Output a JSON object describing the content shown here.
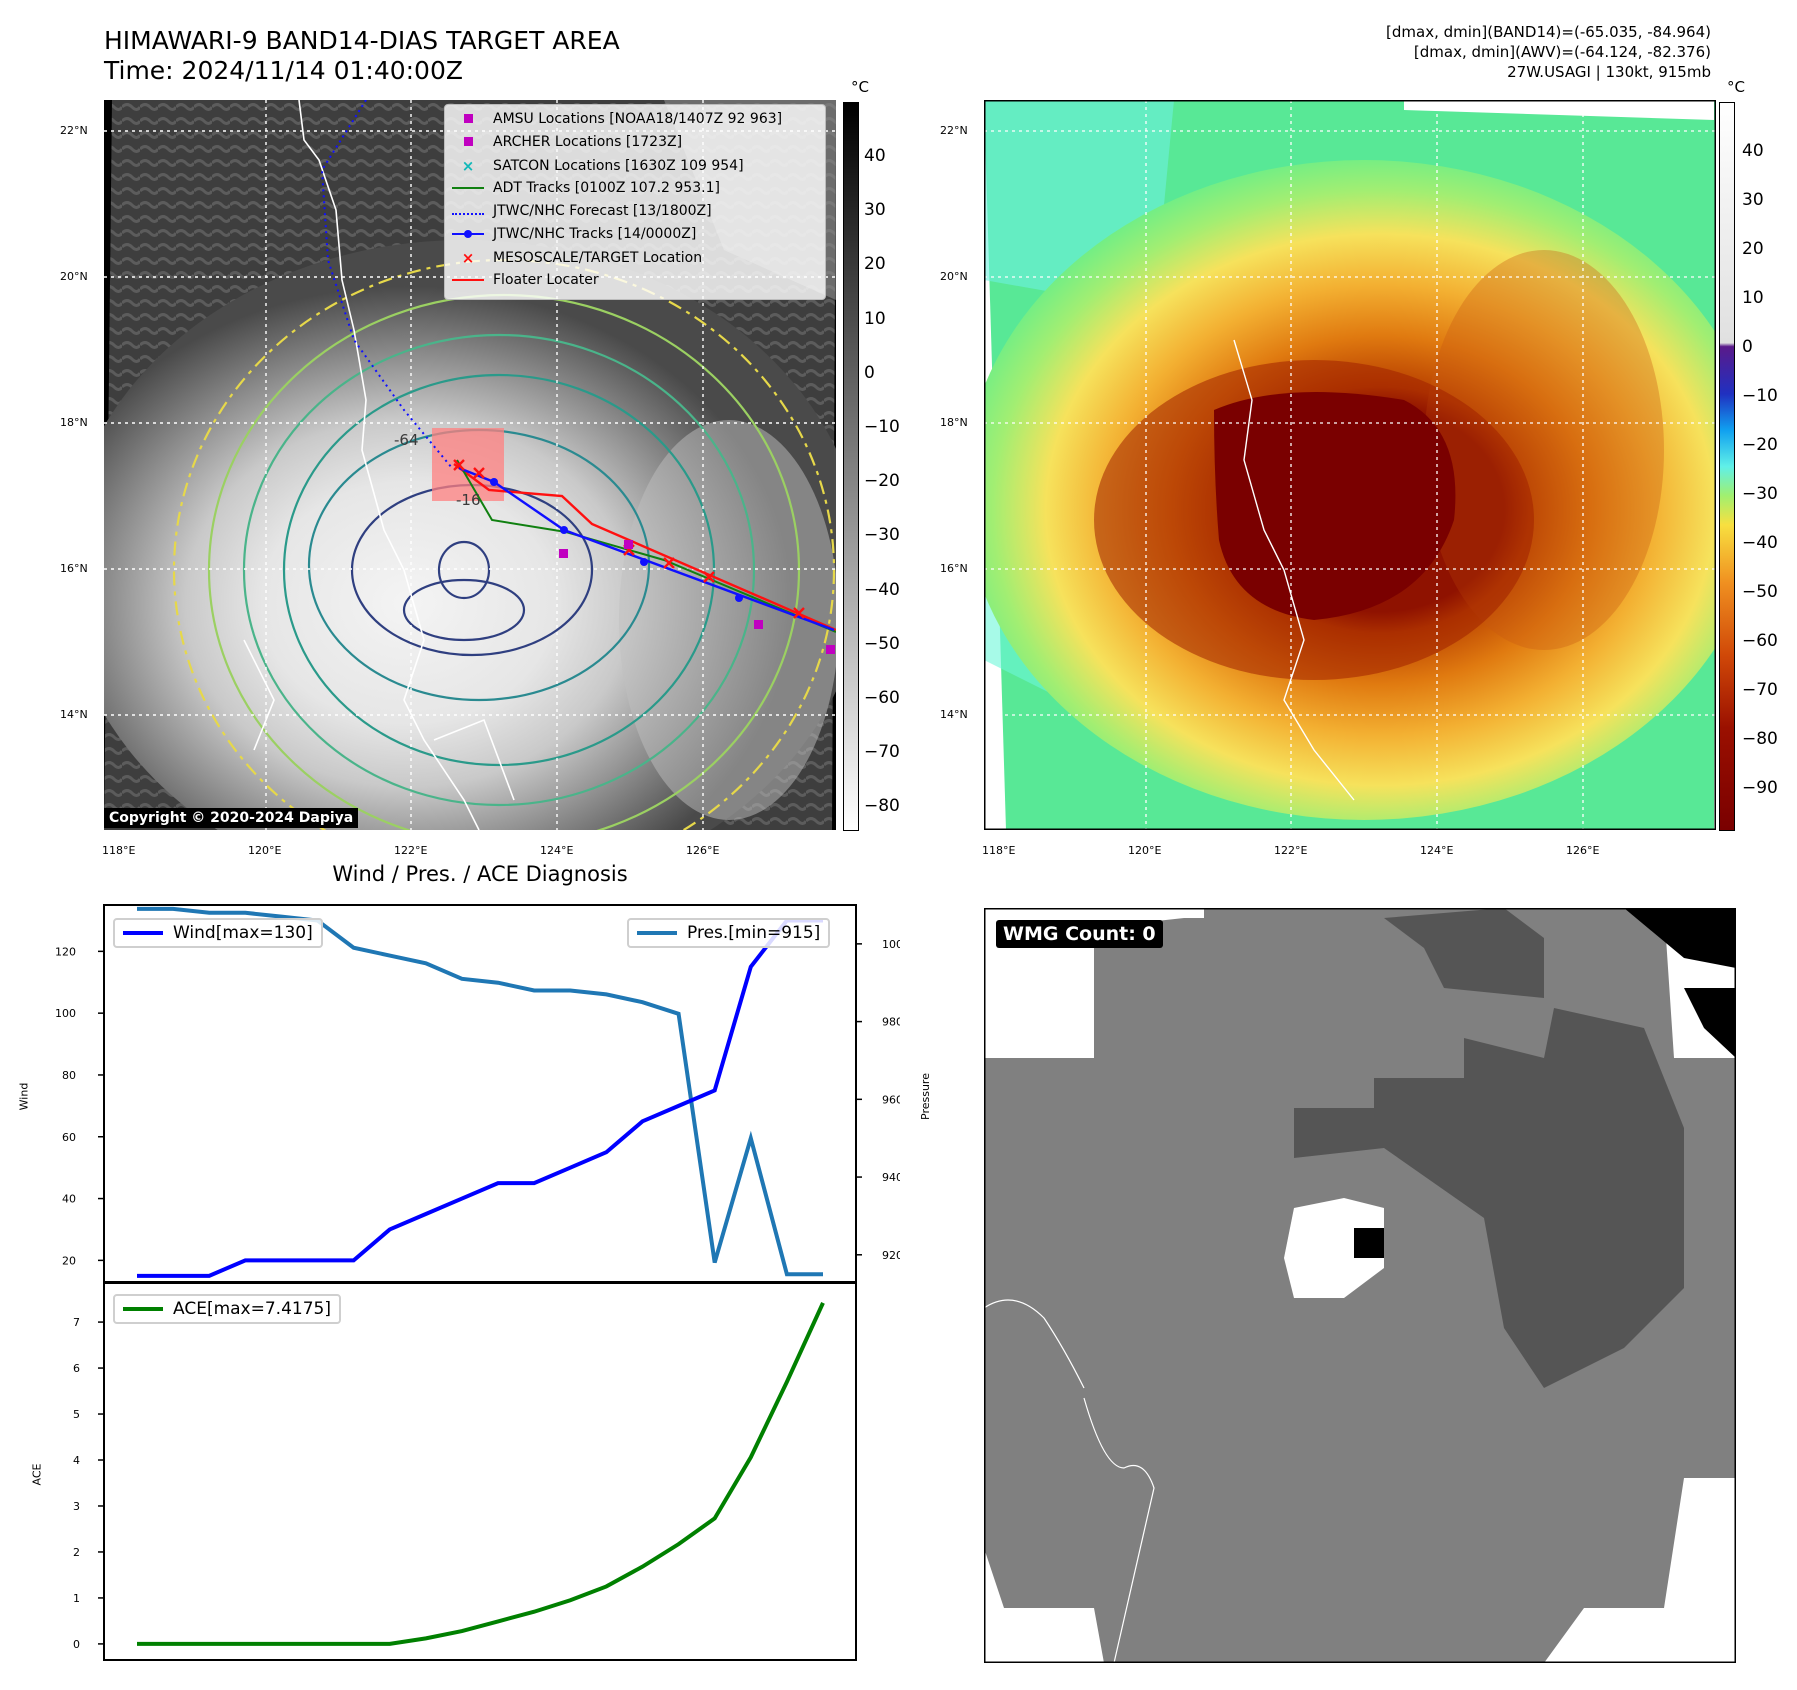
{
  "header": {
    "title_line1": "HIMAWARI-9 BAND14-DIAS TARGET AREA",
    "title_line2": "Time: 2024/11/14 01:40:00Z",
    "meta_line1": "[dmax, dmin](BAND14)=(-65.035, -84.964)",
    "meta_line2": "[dmax, dmin](AWV)=(-64.124, -82.376)",
    "meta_line3": "27W.USAGI | 130kt, 915mb"
  },
  "map": {
    "lat_labels": [
      "22°N",
      "20°N",
      "18°N",
      "16°N",
      "14°N"
    ],
    "lon_labels": [
      "118°E",
      "120°E",
      "122°E",
      "124°E",
      "126°E"
    ],
    "copyright": "Copyright © 2020-2024 Dapiya",
    "contour_labels": [
      "-64",
      "-16"
    ],
    "legend": [
      {
        "label": "AMSU Locations [NOAA18/1407Z 92 963]",
        "kind": "square",
        "color": "#c000c0"
      },
      {
        "label": "ARCHER Locations [1723Z]",
        "kind": "square",
        "color": "#c000c0"
      },
      {
        "label": "SATCON Locations [1630Z 109 954]",
        "kind": "x",
        "color": "#10b8b8"
      },
      {
        "label": "ADT Tracks [0100Z 107.2 953.1]",
        "kind": "line",
        "color": "#108010"
      },
      {
        "label": "JTWC/NHC Forecast [13/1800Z]",
        "kind": "dotted",
        "color": "#1010ff"
      },
      {
        "label": "JTWC/NHC Tracks [14/0000Z]",
        "kind": "dotline",
        "color": "#1010ff"
      },
      {
        "label": "MESOSCALE/TARGET Location",
        "kind": "x",
        "color": "#ff1010"
      },
      {
        "label": "Floater Locater",
        "kind": "line",
        "color": "#ff1010"
      }
    ]
  },
  "colorbar_gray": {
    "unit": "°C",
    "ticks": [
      "40",
      "30",
      "20",
      "10",
      "0",
      "−10",
      "−20",
      "−30",
      "−40",
      "−50",
      "−60",
      "−70",
      "−80"
    ]
  },
  "colorbar_color": {
    "unit": "°C",
    "ticks": [
      "40",
      "30",
      "20",
      "10",
      "0",
      "−10",
      "−20",
      "−30",
      "−40",
      "−50",
      "−60",
      "−70",
      "−80",
      "−90"
    ]
  },
  "wmg": {
    "label": "WMG Count: 0"
  },
  "colors": {
    "wind": "#0000ff",
    "pressure": "#1f77b4",
    "ace": "#008000",
    "eye": "#7a0000"
  },
  "chart_data": [
    {
      "type": "line",
      "title": "Wind / Pres. / ACE Diagnosis",
      "ylabel": "Wind",
      "y2label": "Pressure",
      "ylim": [
        13,
        135
      ],
      "y2lim": [
        913,
        1010
      ],
      "yticks": [
        20,
        40,
        60,
        80,
        100,
        120
      ],
      "y2ticks": [
        920,
        940,
        960,
        980,
        1000
      ],
      "series": [
        {
          "name": "Wind[max=130]",
          "axis": "left",
          "values": [
            15,
            15,
            15,
            20,
            20,
            20,
            20,
            30,
            35,
            40,
            45,
            45,
            50,
            55,
            65,
            70,
            75,
            115,
            130,
            130
          ]
        },
        {
          "name": "Pres.[min=915]",
          "axis": "right",
          "values": [
            1009,
            1009,
            1008,
            1008,
            1007,
            1006,
            999,
            997,
            995,
            991,
            990,
            988,
            988,
            987,
            985,
            982,
            918,
            950,
            915,
            915
          ]
        }
      ]
    },
    {
      "type": "line",
      "ylabel": "ACE",
      "ylim": [
        -0.35,
        7.85
      ],
      "yticks": [
        0,
        1,
        2,
        3,
        4,
        5,
        6,
        7
      ],
      "series": [
        {
          "name": "ACE[max=7.4175]",
          "values": [
            0,
            0,
            0,
            0,
            0,
            0,
            0,
            0,
            0.12,
            0.28,
            0.49,
            0.7,
            0.95,
            1.25,
            1.68,
            2.17,
            2.73,
            4.06,
            5.7,
            7.4175
          ]
        }
      ]
    }
  ]
}
